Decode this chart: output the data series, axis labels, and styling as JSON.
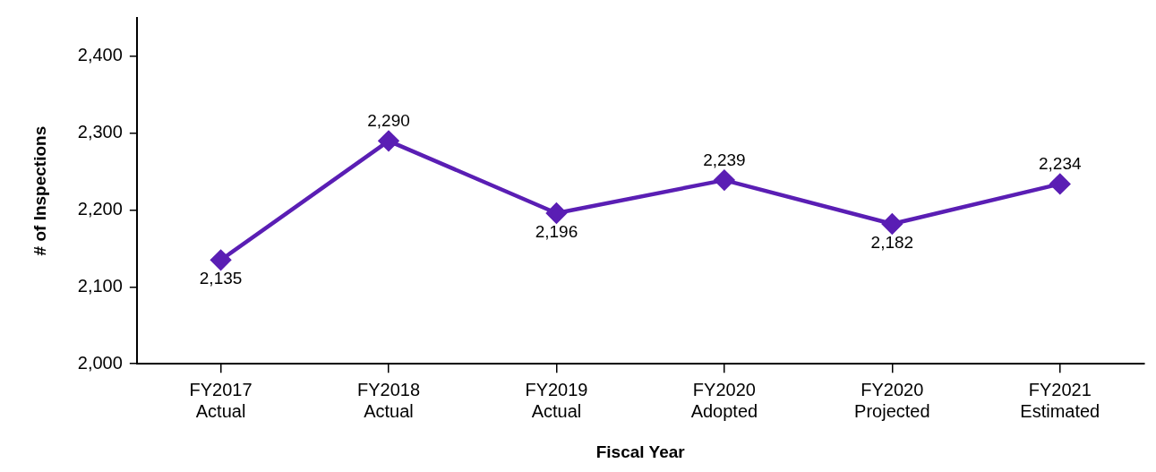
{
  "chart_data": {
    "type": "line",
    "xlabel": "Fiscal Year",
    "ylabel": "# of Inspections",
    "categories": [
      "FY2017\nActual",
      "FY2018\nActual",
      "FY2019\nActual",
      "FY2020\nAdopted",
      "FY2020\nProjected",
      "FY2021\nEstimated"
    ],
    "series": [
      {
        "color": "#5a1eb4",
        "values": [
          2135,
          2290,
          2196,
          2239,
          2182,
          2234
        ],
        "value_labels": [
          "2,135",
          "2,290",
          "2,196",
          "2,239",
          "2,182",
          "2,234"
        ]
      }
    ],
    "ylim": [
      2000,
      2450
    ],
    "yticks": [
      {
        "value": 2000,
        "label": "2,000"
      },
      {
        "value": 2100,
        "label": "2,100"
      },
      {
        "value": 2200,
        "label": "2,200"
      },
      {
        "value": 2300,
        "label": "2,300"
      },
      {
        "value": 2400,
        "label": "2,400"
      }
    ],
    "grid": false,
    "legend": false,
    "marker": "diamond",
    "line_style": "solid"
  }
}
